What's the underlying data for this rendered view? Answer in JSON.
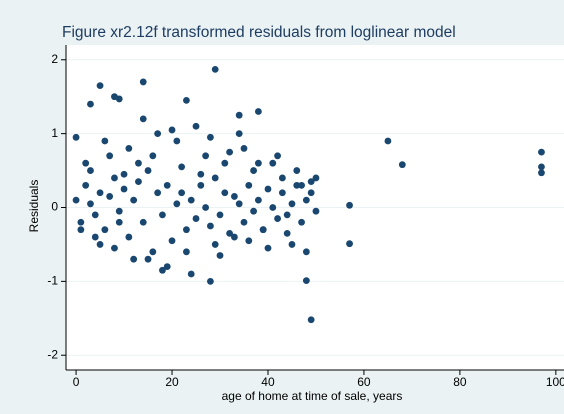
{
  "chart_data": {
    "type": "scatter",
    "title": "Figure xr2.12f transformed residuals from loglinear model",
    "x_label": "age of home at time of sale, years",
    "y_label": "Residuals",
    "color": "#1a476f",
    "grid": true,
    "xlim": [
      -2.1,
      101.7
    ],
    "ylim": [
      -2.2,
      2.2
    ],
    "xticks": [
      0,
      20,
      40,
      60,
      80,
      100
    ],
    "yticks": [
      -2,
      -1,
      0,
      1,
      2
    ],
    "x": [
      0,
      1,
      2,
      3,
      4,
      5,
      6,
      7,
      8,
      9,
      10,
      11,
      12,
      13,
      14,
      15,
      16,
      17,
      18,
      19,
      20,
      21,
      22,
      23,
      24,
      25,
      26,
      27,
      28,
      29,
      30,
      31,
      32,
      33,
      34,
      35,
      36,
      37,
      38,
      39,
      40,
      41,
      42,
      43,
      44,
      45,
      46,
      47,
      48,
      49,
      50,
      1,
      3,
      5,
      7,
      9,
      11,
      13,
      15,
      17,
      19,
      21,
      23,
      25,
      27,
      29,
      31,
      33,
      35,
      37,
      39,
      41,
      43,
      45,
      47,
      49,
      2,
      4,
      6,
      8,
      10,
      12,
      14,
      16,
      18,
      20,
      22,
      24,
      26,
      28,
      30,
      32,
      34,
      36,
      38,
      40,
      42,
      44,
      46,
      48,
      50,
      97,
      97,
      97,
      68,
      65,
      57,
      57,
      48,
      49,
      28,
      29,
      14,
      5,
      3,
      8,
      9,
      23,
      0,
      38,
      34
    ],
    "y": [
      0.1,
      -0.2,
      0.3,
      0.05,
      -0.1,
      0.2,
      -0.3,
      0.15,
      0.4,
      -0.05,
      0.25,
      -0.4,
      0.1,
      0.35,
      -0.2,
      0.5,
      -0.6,
      0.2,
      -0.1,
      0.3,
      -0.45,
      0.05,
      0.2,
      -0.3,
      0.1,
      -0.15,
      0.3,
      0.0,
      -0.25,
      0.4,
      -0.1,
      0.2,
      -0.35,
      0.15,
      0.05,
      -0.2,
      0.3,
      -0.05,
      0.1,
      -0.3,
      0.25,
      0.0,
      -0.15,
      0.2,
      -0.1,
      0.05,
      0.3,
      -0.2,
      0.1,
      0.35,
      -0.05,
      -0.3,
      0.5,
      -0.5,
      0.7,
      -0.2,
      0.8,
      0.6,
      -0.7,
      1.0,
      -0.8,
      0.9,
      -0.6,
      1.1,
      0.7,
      -0.5,
      0.6,
      -0.4,
      0.8,
      0.5,
      -0.3,
      0.6,
      0.4,
      -0.5,
      0.3,
      0.2,
      0.6,
      -0.4,
      0.9,
      -0.55,
      0.45,
      -0.7,
      1.2,
      0.7,
      -0.85,
      1.05,
      0.55,
      -0.9,
      0.45,
      0.95,
      -0.65,
      0.75,
      1.0,
      -0.45,
      0.6,
      -0.55,
      0.7,
      -0.35,
      0.5,
      -0.6,
      0.4,
      0.75,
      0.55,
      0.47,
      0.58,
      0.9,
      0.03,
      -0.49,
      -0.99,
      -1.52,
      -1.0,
      1.87,
      1.7,
      1.65,
      1.4,
      1.5,
      1.47,
      1.45,
      0.95,
      1.3,
      1.25
    ]
  }
}
